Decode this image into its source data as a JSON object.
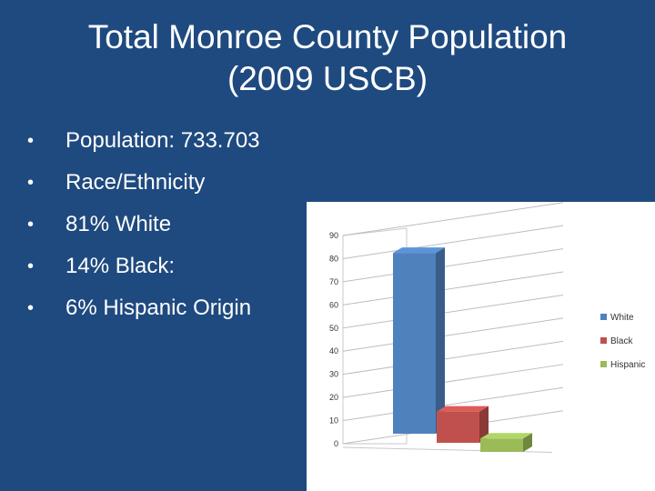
{
  "slide": {
    "title_line1": "Total Monroe County Population",
    "title_line2": "(2009 USCB)",
    "bullets": [
      "Population: 733.703",
      "Race/Ethnicity",
      "81% White",
      "14% Black:",
      "6% Hispanic Origin"
    ],
    "background_color": "#1f4a7f"
  },
  "chart_data": {
    "type": "bar",
    "categories": [
      "White",
      "Black",
      "Hispanic"
    ],
    "values": [
      81,
      14,
      6
    ],
    "colors": [
      "#4f81bd",
      "#c0504d",
      "#9bbb59"
    ],
    "ylim": [
      0,
      90
    ],
    "yticks": [
      "0",
      "10",
      "20",
      "30",
      "40",
      "50",
      "60",
      "70",
      "80",
      "90"
    ],
    "legend": [
      "White",
      "Black",
      "Hispanic"
    ],
    "legend_position": "right",
    "style": "3d",
    "grid": true
  }
}
